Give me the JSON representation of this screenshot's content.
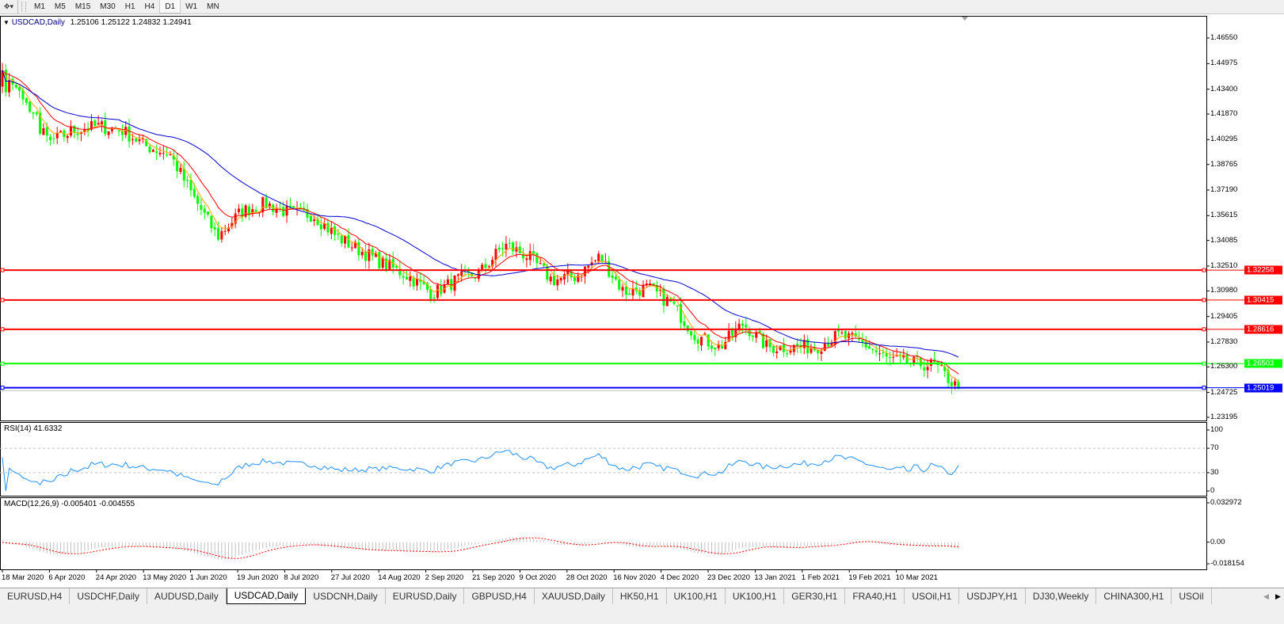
{
  "toolbar": {
    "timeframes": [
      "M1",
      "M5",
      "M15",
      "M30",
      "H1",
      "H4",
      "D1",
      "W1",
      "MN"
    ],
    "active_timeframe": "D1"
  },
  "chart": {
    "symbol_info": "USDCAD,Daily",
    "ohlc": "1.25106 1.25122 1.24832 1.24941",
    "price_ticks": [
      "1.46550",
      "1.44975",
      "1.43400",
      "1.41870",
      "1.40295",
      "1.38765",
      "1.37190",
      "1.35615",
      "1.34085",
      "1.32510",
      "1.30980",
      "1.29405",
      "1.27830",
      "1.26300",
      "1.24725",
      "1.23195"
    ],
    "ylim": [
      1.23195,
      1.4655
    ],
    "bid": 1.24941,
    "colors": {
      "bull": "#ff0000",
      "bear": "#00ff00",
      "ma_fast": "#ffa500",
      "ma_mid": "#ff0000",
      "ma_slow": "#0000cd",
      "bid_line": "#c0c0c0"
    },
    "hlines": [
      {
        "price": 1.32258,
        "label": "1.32258",
        "color": "#ff0000"
      },
      {
        "price": 1.30415,
        "label": "1.30415",
        "color": "#ff0000"
      },
      {
        "price": 1.28616,
        "label": "1.28616",
        "color": "#ff0000"
      },
      {
        "price": 1.26503,
        "label": "1.26503",
        "color": "#00ff00"
      },
      {
        "price": 1.25019,
        "label": "1.25019",
        "color": "#0000ff"
      }
    ],
    "dates": [
      "18 Mar 2020",
      "6 Apr 2020",
      "24 Apr 2020",
      "13 May 2020",
      "1 Jun 2020",
      "19 Jun 2020",
      "8 Jul 2020",
      "27 Jul 2020",
      "14 Aug 2020",
      "2 Sep 2020",
      "21 Sep 2020",
      "9 Oct 2020",
      "28 Oct 2020",
      "16 Nov 2020",
      "4 Dec 2020",
      "23 Dec 2020",
      "13 Jan 2021",
      "1 Feb 2021",
      "19 Feb 2021",
      "10 Mar 2021"
    ],
    "approx_closes": [
      1.4257,
      1.4184,
      1.4014,
      1.4087,
      1.4111,
      1.4087,
      1.399,
      1.3941,
      1.3674,
      1.3431,
      1.3587,
      1.3635,
      1.3577,
      1.3567,
      1.3431,
      1.3344,
      1.3261,
      1.3188,
      1.3081,
      1.3164,
      1.3212,
      1.3383,
      1.331,
      1.3164,
      1.3188,
      1.331,
      1.3091,
      1.3115,
      1.3018,
      1.2824,
      1.2751,
      1.2897,
      1.2751,
      1.2751,
      1.2751,
      1.2824,
      1.2776,
      1.2678,
      1.2654,
      1.264,
      1.2494
    ]
  },
  "rsi": {
    "label": "RSI(14) 41.6332",
    "ticks": [
      "100",
      "70",
      "30",
      "0"
    ],
    "levels": [
      70,
      30
    ],
    "color": "#1e90ff"
  },
  "macd": {
    "label": "MACD(12,26,9) -0.005401 -0.004555",
    "ticks": [
      "0.032972",
      "0.00",
      "-0.018154"
    ],
    "range": [
      -0.018154,
      0.032972
    ],
    "hist_color": "#c0c0c0",
    "signal_color": "#ff0000"
  },
  "tabs": [
    {
      "label": "EURUSD,H4"
    },
    {
      "label": "USDCHF,Daily"
    },
    {
      "label": "AUDUSD,Daily"
    },
    {
      "label": "USDCAD,Daily",
      "active": true
    },
    {
      "label": "USDCNH,Daily"
    },
    {
      "label": "EURUSD,Daily"
    },
    {
      "label": "GBPUSD,H4"
    },
    {
      "label": "XAUUSD,Daily"
    },
    {
      "label": "HK50,H1"
    },
    {
      "label": "UK100,H1"
    },
    {
      "label": "UK100,H1"
    },
    {
      "label": "GER30,H1"
    },
    {
      "label": "FRA40,H1"
    },
    {
      "label": "USOil,H1"
    },
    {
      "label": "USDJPY,H1"
    },
    {
      "label": "DJ30,Weekly"
    },
    {
      "label": "CHINA300,H1"
    },
    {
      "label": "USOil"
    }
  ]
}
